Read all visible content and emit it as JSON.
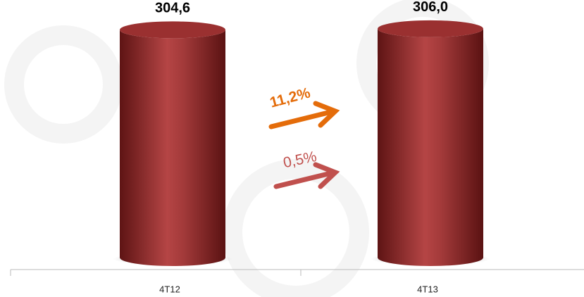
{
  "chart_data": {
    "type": "bar",
    "categories": [
      "4T12",
      "4T13"
    ],
    "values": [
      304.6,
      306.0
    ],
    "value_labels": [
      "304,6",
      "306,0"
    ],
    "color": "#8b2525",
    "ylim": [
      0,
      320
    ],
    "annotations": [
      {
        "text": "11,2%",
        "color": "#e46c0a"
      },
      {
        "text": "0,5%",
        "color": "#c0504d"
      }
    ]
  }
}
